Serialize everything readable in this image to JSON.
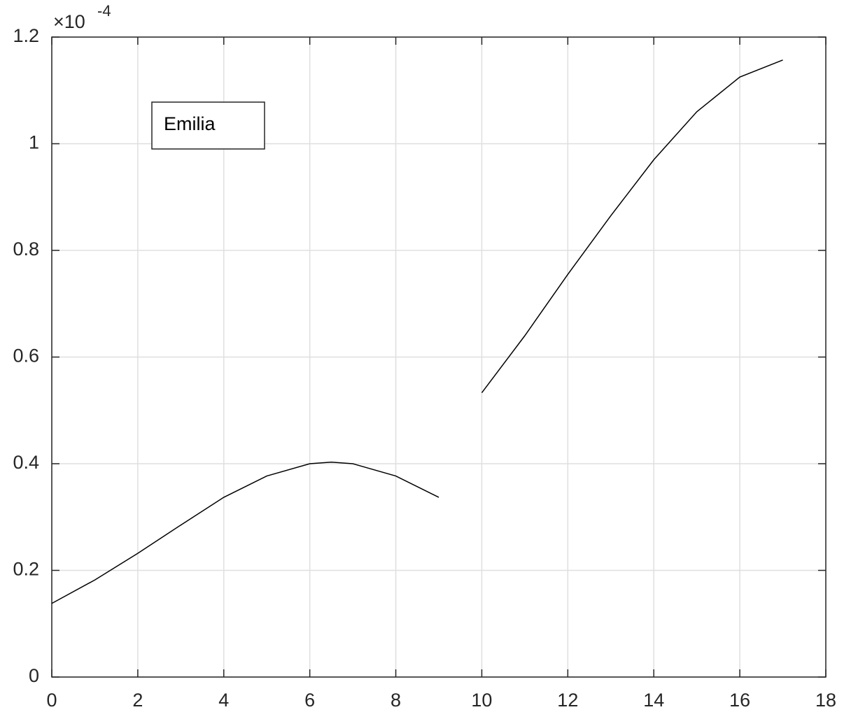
{
  "chart_data": {
    "type": "line",
    "y_multiplier": {
      "base": "×10",
      "exponent": "-4"
    },
    "x": [
      0,
      1,
      2,
      3,
      4,
      5,
      6,
      6.5,
      7,
      8,
      9,
      9.5,
      10,
      11,
      12,
      13,
      14,
      15,
      16,
      17
    ],
    "series": [
      {
        "name": "Emilia",
        "color": "#000000",
        "values": [
          0.138,
          0.182,
          0.232,
          0.285,
          0.337,
          0.377,
          0.4,
          0.403,
          0.4,
          0.377,
          0.337,
          null,
          0.533,
          0.64,
          0.755,
          0.865,
          0.97,
          1.06,
          1.125,
          1.157
        ]
      }
    ],
    "xlim": [
      0,
      18
    ],
    "xticks": [
      0,
      2,
      4,
      6,
      8,
      10,
      12,
      14,
      16,
      18
    ],
    "ylim": [
      0,
      1.2
    ],
    "yticks": [
      0,
      0.2,
      0.4,
      0.6,
      0.8,
      1,
      1.2
    ],
    "grid": true,
    "legend": "northwest"
  }
}
